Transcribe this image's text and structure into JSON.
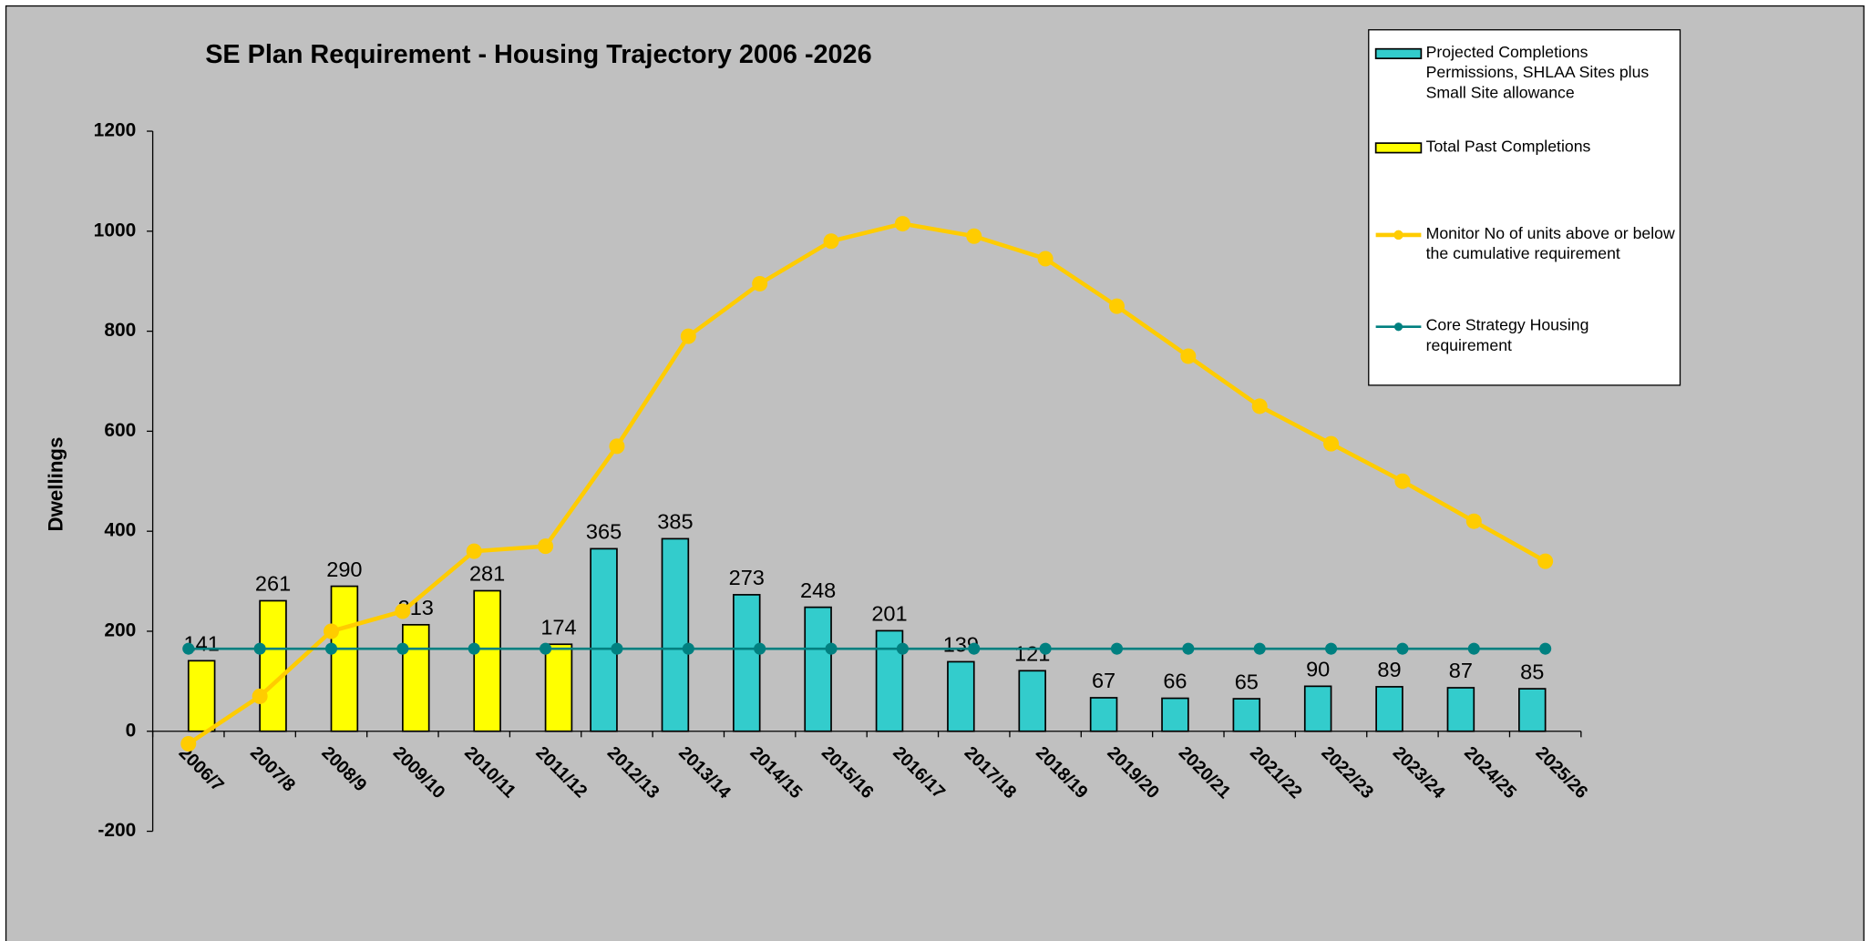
{
  "chart_data": {
    "type": "bar",
    "title": "SE Plan Requirement -  Housing Trajectory 2006 -2026",
    "y_label": "Dwellings",
    "categories": [
      "2006/7",
      "2007/8",
      "2008/9",
      "2009/10",
      "2010/11",
      "2011/12",
      "2012/13",
      "2013/14",
      "2014/15",
      "2015/16",
      "2016/17",
      "2017/18",
      "2018/19",
      "2019/20",
      "2020/21",
      "2021/22",
      "2022/23",
      "2023/24",
      "2024/25",
      "2025/26"
    ],
    "series": [
      {
        "name": "Projected Completions Permissions, SHLAA Sites plus Small Site allowance",
        "type": "bar",
        "color": "#33cccc",
        "values": [
          null,
          null,
          null,
          null,
          null,
          null,
          365,
          385,
          273,
          248,
          201,
          139,
          121,
          67,
          66,
          65,
          90,
          89,
          87,
          85
        ]
      },
      {
        "name": "Total Past Completions",
        "type": "bar",
        "color": "#ffff00",
        "values": [
          141,
          261,
          290,
          213,
          281,
          174,
          null,
          null,
          null,
          null,
          null,
          null,
          null,
          null,
          null,
          null,
          null,
          null,
          null,
          null
        ]
      },
      {
        "name": "Monitor No of units above or below the cumulative requirement",
        "type": "line",
        "color": "#ffcc00",
        "values": [
          -25,
          70,
          200,
          240,
          360,
          370,
          570,
          790,
          895,
          980,
          1015,
          990,
          945,
          850,
          750,
          650,
          575,
          500,
          420,
          340
        ]
      },
      {
        "name": "Core Strategy Housing requirement",
        "type": "line",
        "color": "#008080",
        "values": [
          165,
          165,
          165,
          165,
          165,
          165,
          165,
          165,
          165,
          165,
          165,
          165,
          165,
          165,
          165,
          165,
          165,
          165,
          165,
          165
        ]
      }
    ],
    "ylim": [
      -200,
      1200
    ],
    "yticks": [
      -200,
      0,
      200,
      400,
      600,
      800,
      1000,
      1200
    ],
    "grid": false
  }
}
